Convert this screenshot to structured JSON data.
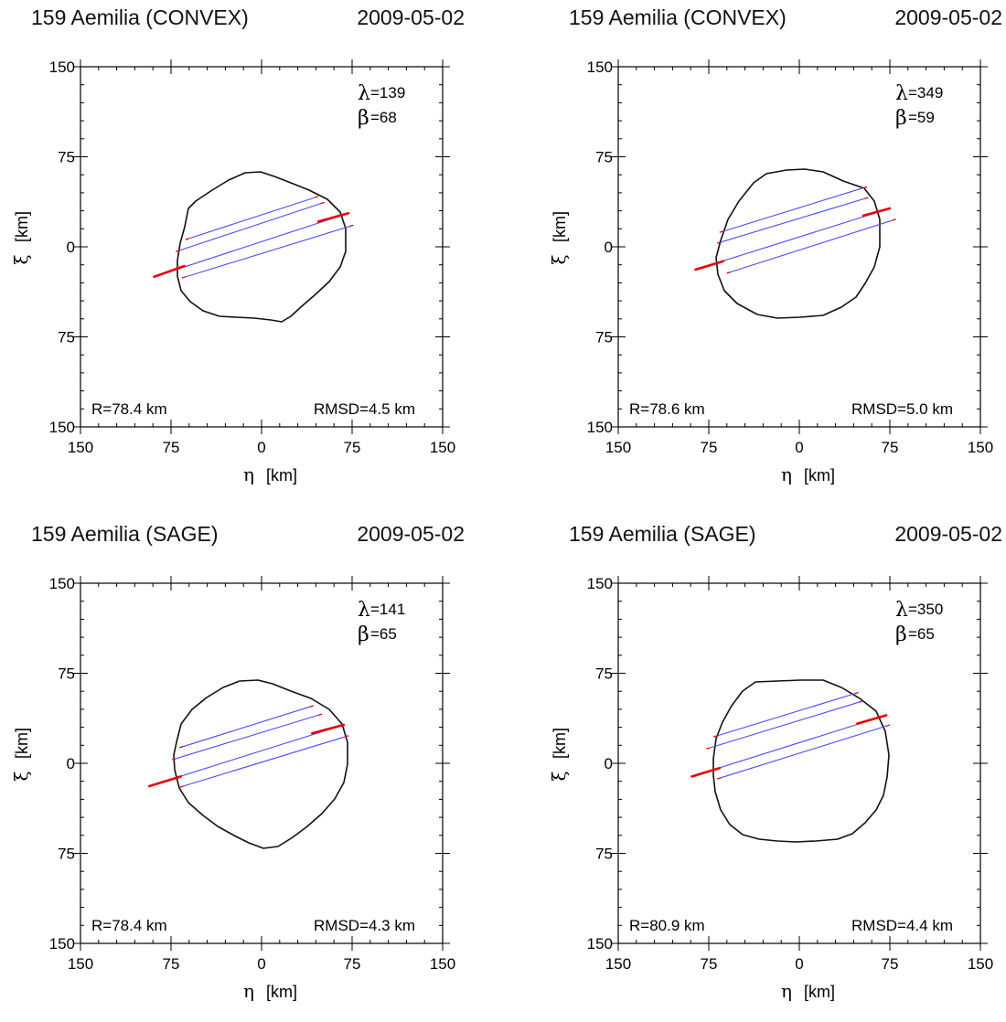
{
  "chart_data": [
    {
      "type": "line",
      "title": "159 Aemilia (CONVEX)",
      "date": "2009-05-02",
      "xlabel_symbol": "η",
      "xlabel_unit": "[km]",
      "ylabel_symbol": "ξ",
      "ylabel_unit": "[km]",
      "xlim": [
        150,
        -150
      ],
      "ylim": [
        -150,
        150
      ],
      "x_ticks": [
        "150",
        "75",
        "0",
        "75",
        "150"
      ],
      "y_ticks": [
        "150",
        "75",
        "0",
        "75",
        "150"
      ],
      "lambda_symbol": "λ",
      "lambda_value": "=139",
      "beta_symbol": "β",
      "beta_value": "=68",
      "radius_text": "R=78.4 km",
      "rmsd_text": "RMSD=4.5 km",
      "outline": [
        [
          42,
          0
        ],
        [
          50,
          41
        ],
        [
          40,
          57
        ],
        [
          12,
          61
        ],
        [
          -17,
          51
        ],
        [
          -40,
          36
        ],
        [
          -68,
          24
        ],
        [
          -72,
          9
        ],
        [
          -72,
          -15
        ],
        [
          -69,
          -43
        ],
        [
          -50,
          -59
        ],
        [
          -2,
          -62
        ],
        [
          -17,
          -61
        ],
        [
          -33,
          -58
        ],
        [
          -58,
          -38
        ],
        [
          -71,
          -5
        ],
        [
          -72,
          5
        ],
        [
          -70,
          -12
        ],
        [
          -36,
          -60
        ],
        [
          -22,
          -62
        ]
      ],
      "chords": [
        {
          "x1": 63,
          "y1": 6,
          "x2": -47,
          "y2": 42,
          "red": []
        },
        {
          "x1": 71,
          "y1": -4,
          "x2": -52,
          "y2": 37,
          "red": []
        },
        {
          "x1": 89,
          "y1": -25,
          "x2": -72,
          "y2": 28,
          "red": [
            [
              89,
              -25,
              64,
              -16
            ],
            [
              -47,
              21,
              -72,
              28
            ]
          ]
        },
        {
          "x1": 66,
          "y1": -26,
          "x2": -76,
          "y2": 18,
          "red": []
        }
      ]
    },
    {
      "type": "line",
      "title": "159 Aemilia (CONVEX)",
      "date": "2009-05-02",
      "xlabel_symbol": "η",
      "xlabel_unit": "[km]",
      "ylabel_symbol": "ξ",
      "ylabel_unit": "[km]",
      "xlim": [
        150,
        -150
      ],
      "ylim": [
        -150,
        150
      ],
      "x_ticks": [
        "150",
        "75",
        "0",
        "75",
        "150"
      ],
      "y_ticks": [
        "150",
        "75",
        "0",
        "75",
        "150"
      ],
      "lambda_symbol": "λ",
      "lambda_value": "=349",
      "beta_symbol": "β",
      "beta_value": "=59",
      "radius_text": "R=78.6 km",
      "rmsd_text": "RMSD=5.0 km",
      "outline": [],
      "chords": [
        {
          "x1": 66,
          "y1": 12,
          "x2": -56,
          "y2": 50,
          "red": []
        },
        {
          "x1": 68,
          "y1": 3,
          "x2": -57,
          "y2": 41,
          "red": []
        },
        {
          "x1": 86,
          "y1": -19,
          "x2": -75,
          "y2": 32,
          "red": [
            [
              86,
              -19,
              63,
              -12
            ],
            [
              -53,
              26,
              -75,
              32
            ]
          ]
        },
        {
          "x1": 60,
          "y1": -22,
          "x2": -80,
          "y2": 23,
          "red": []
        }
      ]
    },
    {
      "type": "line",
      "title": "159 Aemilia (SAGE)",
      "date": "2009-05-02",
      "xlabel_symbol": "η",
      "xlabel_unit": "[km]",
      "ylabel_symbol": "ξ",
      "ylabel_unit": "[km]",
      "xlim": [
        150,
        -150
      ],
      "ylim": [
        -150,
        150
      ],
      "x_ticks": [
        "150",
        "75",
        "0",
        "75",
        "150"
      ],
      "y_ticks": [
        "150",
        "75",
        "0",
        "75",
        "150"
      ],
      "lambda_symbol": "λ",
      "lambda_value": "=141",
      "beta_symbol": "β",
      "beta_value": "=65",
      "radius_text": "R=78.4 km",
      "rmsd_text": "RMSD=4.3 km",
      "outline": [],
      "chords": [
        {
          "x1": 68,
          "y1": 13,
          "x2": -43,
          "y2": 48,
          "red": []
        },
        {
          "x1": 74,
          "y1": 3,
          "x2": -50,
          "y2": 41,
          "red": []
        },
        {
          "x1": 93,
          "y1": -19,
          "x2": -68,
          "y2": 32,
          "red": [
            [
              93,
              -19,
              67,
              -11
            ],
            [
              -42,
              25,
              -68,
              32
            ]
          ]
        },
        {
          "x1": 68,
          "y1": -20,
          "x2": -72,
          "y2": 23,
          "red": []
        }
      ]
    },
    {
      "type": "line",
      "title": "159 Aemilia (SAGE)",
      "date": "2009-05-02",
      "xlabel_symbol": "η",
      "xlabel_unit": "[km]",
      "ylabel_symbol": "ξ",
      "ylabel_unit": "[km]",
      "xlim": [
        150,
        -150
      ],
      "ylim": [
        -150,
        150
      ],
      "x_ticks": [
        "150",
        "75",
        "0",
        "75",
        "150"
      ],
      "y_ticks": [
        "150",
        "75",
        "0",
        "75",
        "150"
      ],
      "lambda_symbol": "λ",
      "lambda_value": "=350",
      "beta_symbol": "β",
      "beta_value": "=65",
      "radius_text": "R=80.9 km",
      "rmsd_text": "RMSD=4.4 km",
      "outline": [],
      "chords": [
        {
          "x1": 71,
          "y1": 22,
          "x2": -49,
          "y2": 59,
          "red": []
        },
        {
          "x1": 77,
          "y1": 12,
          "x2": -53,
          "y2": 52,
          "red": []
        },
        {
          "x1": 89,
          "y1": -11,
          "x2": -72,
          "y2": 40,
          "red": [
            [
              89,
              -11,
              66,
              -4
            ],
            [
              -48,
              33,
              -72,
              40
            ]
          ]
        },
        {
          "x1": 68,
          "y1": -13,
          "x2": -75,
          "y2": 32,
          "red": []
        }
      ]
    }
  ]
}
